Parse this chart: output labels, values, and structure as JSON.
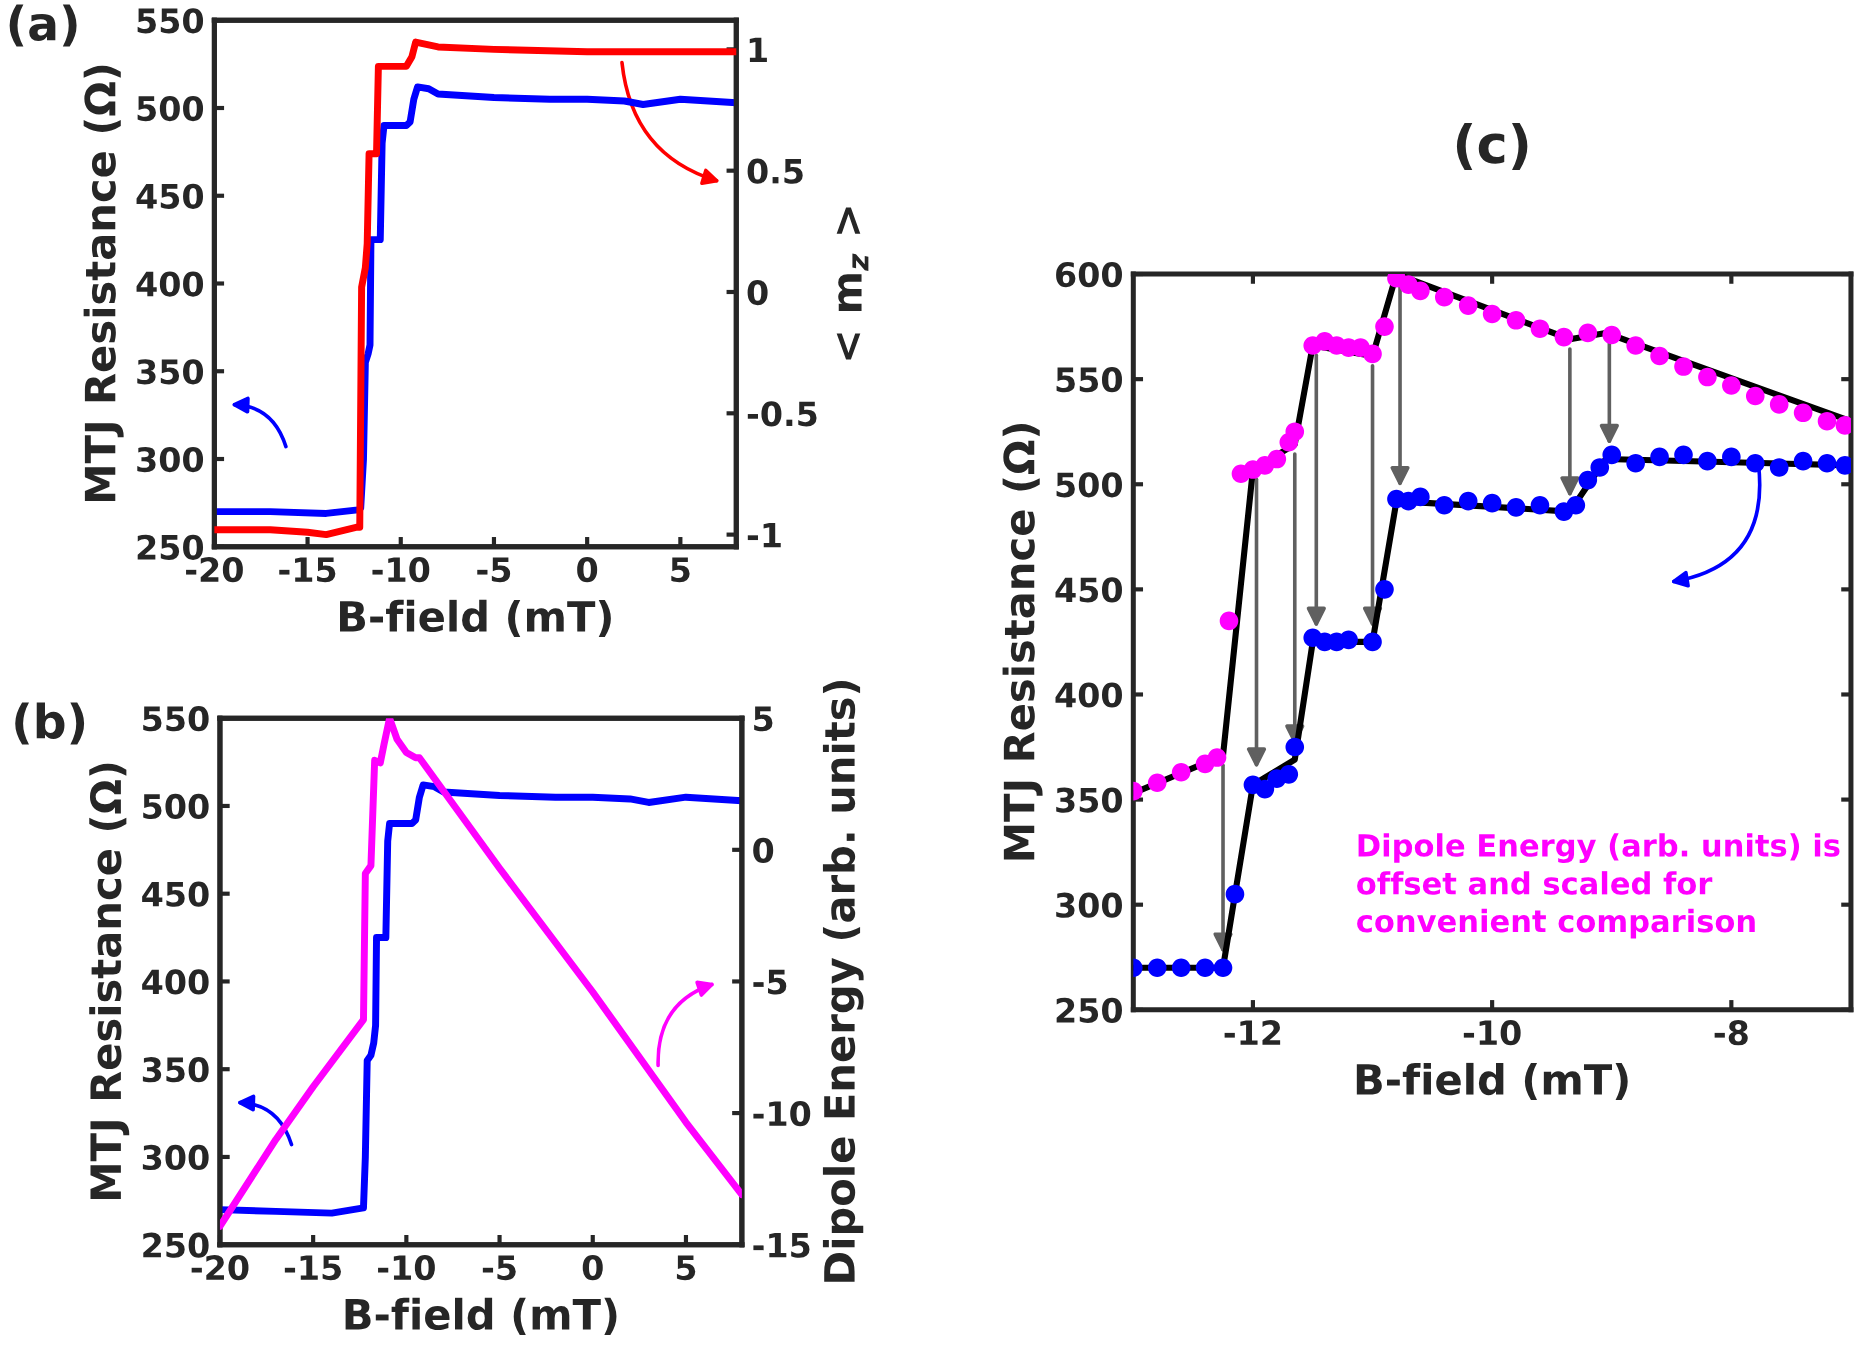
{
  "chart_data": [
    {
      "type": "line",
      "title": "(a)",
      "xlabel": "B-field (mT)",
      "ylabel": "MTJ Resistance (Ω)",
      "y2label": "< m$_{z}$ >",
      "xlim": [
        -20,
        8
      ],
      "xticks": [
        -20,
        -15,
        -10,
        -5,
        0,
        5
      ],
      "ylim": [
        250,
        550
      ],
      "yticks": [
        250,
        300,
        350,
        400,
        450,
        500,
        550
      ],
      "y2lim": [
        -1.05,
        1.12
      ],
      "y2ticks": [
        -1,
        -0.5,
        0,
        0.5,
        1
      ],
      "grid": false,
      "series": [
        {
          "color": "#0000ff",
          "x": [
            -20,
            -17,
            -14,
            -12.3,
            -12.15,
            -12.0,
            -11.9,
            -11.75,
            -11.65,
            -11.6,
            -11.1,
            -11.0,
            -10.9,
            -9.7,
            -9.5,
            -9.3,
            -9.1,
            -8.5,
            -8,
            -5,
            -2,
            0,
            2,
            3,
            5,
            8
          ],
          "values": [
            270,
            270,
            269,
            271,
            272,
            300,
            355,
            360,
            365,
            425,
            425,
            480,
            490,
            490,
            492,
            505,
            512,
            511,
            508,
            506,
            505,
            505,
            504,
            502,
            505,
            503
          ]
        },
        {
          "color": "#ff0000",
          "axis": "y2",
          "x": [
            -20,
            -17,
            -15,
            -14,
            -12.4,
            -12.2,
            -12.1,
            -11.9,
            -11.8,
            -11.7,
            -11.3,
            -11.2,
            -9.7,
            -9.4,
            -9.2,
            -8,
            -5,
            0,
            5,
            8
          ],
          "values": [
            -0.98,
            -0.98,
            -0.99,
            -1.0,
            -0.97,
            -0.97,
            0.02,
            0.1,
            0.2,
            0.57,
            0.57,
            0.93,
            0.93,
            0.97,
            1.03,
            1.01,
            1.0,
            0.99,
            0.99,
            0.99
          ]
        }
      ]
    },
    {
      "type": "line",
      "title": "(b)",
      "xlabel": "B-field (mT)",
      "ylabel": "MTJ Resistance (Ω)",
      "y2label": "Dipole Energy (arb. units)",
      "xlim": [
        -20,
        8
      ],
      "xticks": [
        -20,
        -15,
        -10,
        -5,
        0,
        5
      ],
      "ylim": [
        250,
        550
      ],
      "yticks": [
        250,
        300,
        350,
        400,
        450,
        500,
        550
      ],
      "y2lim": [
        -15,
        5
      ],
      "y2ticks": [
        -15,
        -10,
        -5,
        0,
        5
      ],
      "grid": false,
      "series": [
        {
          "color": "#0000ff",
          "x": [
            -20,
            -17,
            -14,
            -12.3,
            -12.2,
            -12.1,
            -11.9,
            -11.75,
            -11.65,
            -11.6,
            -11.1,
            -11.0,
            -10.9,
            -9.7,
            -9.5,
            -9.3,
            -9.1,
            -8.5,
            -8,
            -5,
            -2,
            0,
            2,
            3,
            5,
            8
          ],
          "values": [
            270,
            269,
            268,
            271,
            300,
            355,
            358,
            365,
            375,
            425,
            425,
            480,
            490,
            490,
            492,
            505,
            512,
            511,
            508,
            506,
            505,
            505,
            504,
            502,
            505,
            503
          ]
        },
        {
          "color": "#ff00ff",
          "axis": "y2",
          "x": [
            -20,
            -17,
            -15,
            -12.3,
            -12.2,
            -11.9,
            -11.7,
            -11.4,
            -11.2,
            -10.9,
            -10.5,
            -10,
            -9.5,
            -9.3,
            -5,
            0,
            5,
            8
          ],
          "values": [
            -14.3,
            -11.0,
            -9.0,
            -6.45,
            -0.9,
            -0.6,
            3.4,
            3.3,
            4.0,
            5.0,
            4.2,
            3.7,
            3.5,
            3.5,
            -0.7,
            -5.4,
            -10.35,
            -13.1
          ]
        }
      ]
    },
    {
      "type": "scatter",
      "title": "(c)",
      "xlabel": "B-field (mT)",
      "ylabel": "MTJ Resistance (Ω)",
      "xlim": [
        -13,
        -7
      ],
      "xticks": [
        -12,
        -10,
        -8
      ],
      "ylim": [
        250,
        600
      ],
      "yticks": [
        250,
        300,
        350,
        400,
        450,
        500,
        550,
        600
      ],
      "grid": false,
      "marker": "circle",
      "annotations": [
        "Dipole Energy (arb. units) is\noffset and scaled for\nconvenient comparison"
      ],
      "series": [
        {
          "color": "#ff00ff",
          "x": [
            -13,
            -12.8,
            -12.6,
            -12.4,
            -12.3,
            -12.2,
            -12.1,
            -12.0,
            -11.9,
            -11.8,
            -11.7,
            -11.65,
            -11.5,
            -11.4,
            -11.3,
            -11.2,
            -11.1,
            -11.0,
            -10.9,
            -10.8,
            -10.7,
            -10.6,
            -10.4,
            -10.2,
            -10.0,
            -9.8,
            -9.6,
            -9.4,
            -9.2,
            -9.0,
            -8.8,
            -8.6,
            -8.4,
            -8.2,
            -8.0,
            -7.8,
            -7.6,
            -7.4,
            -7.2,
            -7.05
          ],
          "values": [
            354,
            358,
            363,
            367,
            370,
            435,
            505,
            507,
            509,
            512,
            520,
            525,
            566,
            568,
            566,
            565,
            565,
            562,
            575,
            598,
            595,
            592,
            589,
            585,
            581,
            578,
            574,
            570,
            572,
            571,
            566,
            561,
            556,
            551,
            547,
            542,
            538,
            534,
            530,
            528
          ]
        },
        {
          "color": "#0000ff",
          "x": [
            -13,
            -12.8,
            -12.6,
            -12.4,
            -12.25,
            -12.15,
            -12.0,
            -11.9,
            -11.8,
            -11.7,
            -11.65,
            -11.5,
            -11.4,
            -11.3,
            -11.2,
            -11.0,
            -10.9,
            -10.8,
            -10.7,
            -10.6,
            -10.4,
            -10.2,
            -10.0,
            -9.8,
            -9.6,
            -9.4,
            -9.3,
            -9.2,
            -9.1,
            -9.0,
            -8.8,
            -8.6,
            -8.4,
            -8.2,
            -8.0,
            -7.8,
            -7.6,
            -7.4,
            -7.2,
            -7.05
          ],
          "values": [
            270,
            270,
            270,
            270,
            270,
            305,
            357,
            355,
            360,
            362,
            375,
            427,
            425,
            425,
            426,
            425,
            450,
            493,
            492,
            494,
            490,
            492,
            491,
            489,
            490,
            487,
            490,
            502,
            508,
            514,
            510,
            513,
            514,
            511,
            513,
            510,
            508,
            511,
            510,
            509
          ]
        },
        {
          "type": "line",
          "color": "#000000",
          "marker": "none",
          "x": [
            -13,
            -12.25,
            -12.0,
            -11.65,
            -11.5,
            -11.0,
            -10.8,
            -9.35,
            -9.05,
            -7
          ],
          "values": [
            353,
            371,
            507,
            519,
            566,
            561,
            600,
            569,
            572,
            530
          ]
        },
        {
          "type": "line",
          "color": "#000000",
          "marker": "none",
          "x": [
            -13,
            -12.25,
            -12.0,
            -11.65,
            -11.5,
            -11.0,
            -10.8,
            -9.35,
            -9.05,
            -7
          ],
          "values": [
            270,
            270,
            357,
            369,
            425,
            425,
            492,
            487,
            512,
            509
          ]
        }
      ]
    }
  ]
}
